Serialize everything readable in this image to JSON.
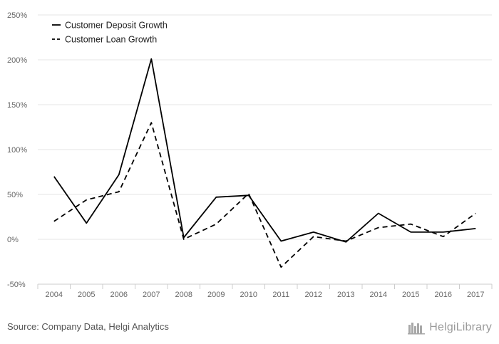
{
  "chart_data": {
    "type": "line",
    "categories": [
      "2004",
      "2005",
      "2006",
      "2007",
      "2008",
      "2009",
      "2010",
      "2011",
      "2012",
      "2013",
      "2014",
      "2015",
      "2016",
      "2017"
    ],
    "series": [
      {
        "name": "Customer Deposit Growth",
        "style": "solid",
        "values": [
          70,
          18,
          72,
          201,
          2,
          47,
          49,
          -2,
          8,
          -3,
          29,
          8,
          8,
          12
        ]
      },
      {
        "name": "Customer Loan Growth",
        "style": "dashed",
        "values": [
          20,
          44,
          53,
          130,
          0,
          17,
          51,
          -31,
          3,
          -2,
          13,
          17,
          3,
          29
        ]
      }
    ],
    "yticks": [
      "250%",
      "200%",
      "150%",
      "100%",
      "50%",
      "0%",
      "-50%"
    ],
    "ylim": [
      -50,
      250
    ],
    "grid": true,
    "legend_position": "top-left",
    "colors": {
      "line": "#000000",
      "grid": "#e6e6e6",
      "axis": "#cccccc"
    }
  },
  "footer": {
    "source": "Source: Company Data, Helgi Analytics",
    "logo_text": "HelgiLibrary"
  }
}
